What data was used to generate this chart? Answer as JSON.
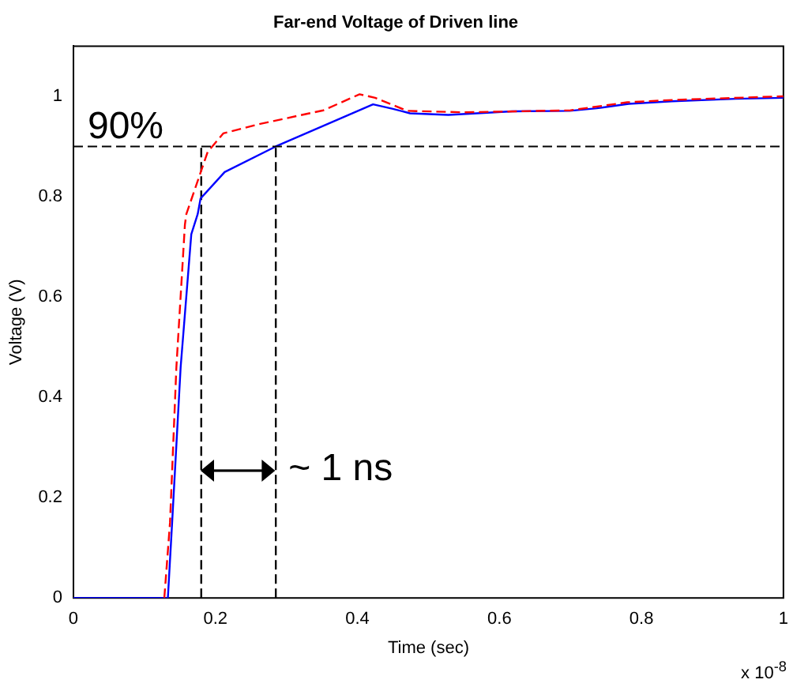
{
  "chart_data": {
    "type": "line",
    "title": "Far-end Voltage of Driven line",
    "xlabel": "Time (sec)",
    "ylabel": "Voltage (V)",
    "xlim": [
      0,
      1
    ],
    "xticks": [
      0,
      0.2,
      0.4,
      0.6,
      0.8,
      1
    ],
    "ylim": [
      0,
      1.1
    ],
    "yticks": [
      0,
      0.2,
      0.4,
      0.6,
      0.8,
      1
    ],
    "grid": false,
    "legend": false,
    "marker": "none",
    "series": [
      {
        "color": "#ff0000",
        "line_style": "dashed",
        "x": [
          0.128,
          0.136,
          0.145,
          0.157,
          0.159,
          0.189,
          0.211,
          0.263,
          0.352,
          0.403,
          0.425,
          0.47,
          0.55,
          0.7,
          0.78,
          0.85,
          1.0
        ],
        "values": [
          0,
          0.15,
          0.46,
          0.744,
          0.765,
          0.889,
          0.926,
          0.945,
          0.972,
          1.004,
          0.997,
          0.971,
          0.968,
          0.972,
          0.988,
          0.993,
          1.0
        ]
      },
      {
        "color": "#0000ff",
        "line_style": "solid",
        "x": [
          0,
          0.133,
          0.139,
          0.151,
          0.166,
          0.175,
          0.179,
          0.213,
          0.285,
          0.35,
          0.422,
          0.45,
          0.474,
          0.528,
          0.618,
          0.699,
          0.737,
          0.782,
          0.843,
          0.933,
          1.0
        ],
        "values": [
          0,
          0,
          0.15,
          0.46,
          0.725,
          0.765,
          0.796,
          0.849,
          0.9,
          0.94,
          0.984,
          0.975,
          0.966,
          0.963,
          0.97,
          0.971,
          0.976,
          0.985,
          0.99,
          0.995,
          0.997
        ]
      },
      {
        "color": "#000000",
        "line_style": "dashed",
        "x": [
          0.18,
          0.18
        ],
        "values": [
          0,
          0.9
        ]
      },
      {
        "color": "#000000",
        "line_style": "dashed",
        "x": [
          0.285,
          0.285
        ],
        "values": [
          0,
          0.9
        ]
      }
    ],
    "ref_lines": [
      {
        "axis": "y",
        "value": 0.9,
        "color": "#000000",
        "line_style": "dashed"
      }
    ],
    "annotations": [
      {
        "text": "90%",
        "x": 0.02,
        "y": 0.9
      },
      "~ 1 ns",
      "x 10$^{-8}$"
    ]
  }
}
